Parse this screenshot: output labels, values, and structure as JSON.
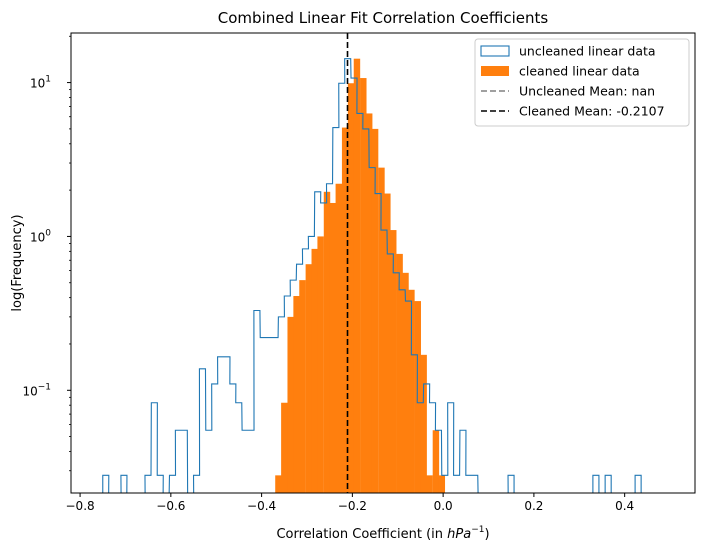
{
  "chart_data": {
    "type": "histogram",
    "title": "Combined Linear Fit Correlation Coefficients",
    "xlabel_prefix": "Correlation Coefficient (in ",
    "xlabel_unit_base": "hPa",
    "xlabel_unit_exp": "−1",
    "xlabel_suffix": ")",
    "ylabel": "log(Frequency)",
    "y_scale": "log",
    "xlim": [
      -0.82,
      0.555
    ],
    "ylim": [
      0.0215,
      21
    ],
    "grid": false,
    "legend_position": "upper right",
    "xticks": [
      {
        "value": -0.8,
        "label": "−0.8"
      },
      {
        "value": -0.6,
        "label": "−0.6"
      },
      {
        "value": -0.4,
        "label": "−0.4"
      },
      {
        "value": -0.2,
        "label": "−0.2"
      },
      {
        "value": 0.0,
        "label": "0.0"
      },
      {
        "value": 0.2,
        "label": "0.2"
      },
      {
        "value": 0.4,
        "label": "0.4"
      }
    ],
    "yticks": [
      {
        "value": 0.1,
        "base": "10",
        "exp": "−1"
      },
      {
        "value": 1,
        "base": "10",
        "exp": "0"
      },
      {
        "value": 10,
        "base": "10",
        "exp": "1"
      }
    ],
    "series": [
      {
        "name": "uncleaned linear data",
        "style": "step",
        "color": "#1f77b4",
        "bin_width": 0.0133,
        "bins": [
          [
            -0.75,
            0.028
          ],
          [
            -0.737,
            0.014
          ],
          [
            -0.723,
            0.014
          ],
          [
            -0.71,
            0.028
          ],
          [
            -0.697,
            0.014
          ],
          [
            -0.683,
            0.014
          ],
          [
            -0.67,
            0.014
          ],
          [
            -0.657,
            0.028
          ],
          [
            -0.643,
            0.083
          ],
          [
            -0.63,
            0.028
          ],
          [
            -0.617,
            0.014
          ],
          [
            -0.603,
            0.028
          ],
          [
            -0.59,
            0.055
          ],
          [
            -0.577,
            0.055
          ],
          [
            -0.563,
            0.014
          ],
          [
            -0.55,
            0.028
          ],
          [
            -0.537,
            0.138
          ],
          [
            -0.523,
            0.055
          ],
          [
            -0.51,
            0.11
          ],
          [
            -0.497,
            0.165
          ],
          [
            -0.483,
            0.165
          ],
          [
            -0.47,
            0.11
          ],
          [
            -0.457,
            0.083
          ],
          [
            -0.443,
            0.055
          ],
          [
            -0.43,
            0.055
          ],
          [
            -0.417,
            0.33
          ],
          [
            -0.403,
            0.22
          ],
          [
            -0.39,
            0.22
          ],
          [
            -0.377,
            0.22
          ],
          [
            -0.363,
            0.3
          ],
          [
            -0.35,
            0.41
          ],
          [
            -0.337,
            0.52
          ],
          [
            -0.323,
            0.66
          ],
          [
            -0.31,
            0.83
          ],
          [
            -0.297,
            1.0
          ],
          [
            -0.283,
            1.95
          ],
          [
            -0.27,
            1.65
          ],
          [
            -0.257,
            2.2
          ],
          [
            -0.243,
            5.1
          ],
          [
            -0.23,
            9.9
          ],
          [
            -0.217,
            14.3
          ],
          [
            -0.203,
            10.7
          ],
          [
            -0.19,
            6.3
          ],
          [
            -0.177,
            5.0
          ],
          [
            -0.163,
            2.8
          ],
          [
            -0.15,
            1.9
          ],
          [
            -0.137,
            1.1
          ],
          [
            -0.123,
            0.77
          ],
          [
            -0.11,
            0.58
          ],
          [
            -0.097,
            0.45
          ],
          [
            -0.083,
            0.38
          ],
          [
            -0.07,
            0.17
          ],
          [
            -0.057,
            0.083
          ],
          [
            -0.043,
            0.11
          ],
          [
            -0.03,
            0.083
          ],
          [
            -0.017,
            0.055
          ],
          [
            -0.003,
            0.028
          ],
          [
            0.01,
            0.083
          ],
          [
            0.023,
            0.028
          ],
          [
            0.037,
            0.055
          ],
          [
            0.05,
            0.028
          ],
          [
            0.063,
            0.028
          ],
          [
            0.077,
            0.014
          ],
          [
            0.09,
            0.014
          ],
          [
            0.103,
            0.014
          ],
          [
            0.117,
            0.014
          ],
          [
            0.13,
            0.014
          ],
          [
            0.143,
            0.028
          ],
          [
            0.33,
            0.028
          ],
          [
            0.357,
            0.028
          ],
          [
            0.423,
            0.028
          ]
        ]
      },
      {
        "name": "cleaned linear data",
        "style": "filled",
        "color": "#ff7f0e",
        "bin_width": 0.0133,
        "bins": [
          [
            -0.37,
            0.028
          ],
          [
            -0.357,
            0.083
          ],
          [
            -0.343,
            0.3
          ],
          [
            -0.33,
            0.41
          ],
          [
            -0.317,
            0.52
          ],
          [
            -0.303,
            0.66
          ],
          [
            -0.29,
            0.83
          ],
          [
            -0.277,
            1.0
          ],
          [
            -0.263,
            1.95
          ],
          [
            -0.25,
            1.65
          ],
          [
            -0.237,
            2.2
          ],
          [
            -0.223,
            5.1
          ],
          [
            -0.21,
            9.9
          ],
          [
            -0.197,
            14.3
          ],
          [
            -0.183,
            10.7
          ],
          [
            -0.17,
            6.3
          ],
          [
            -0.157,
            5.0
          ],
          [
            -0.143,
            2.8
          ],
          [
            -0.13,
            1.9
          ],
          [
            -0.117,
            1.1
          ],
          [
            -0.103,
            0.77
          ],
          [
            -0.09,
            0.58
          ],
          [
            -0.077,
            0.45
          ],
          [
            -0.063,
            0.38
          ],
          [
            -0.05,
            0.17
          ],
          [
            -0.037,
            0.028
          ],
          [
            -0.023,
            0.055
          ],
          [
            -0.01,
            0.028
          ]
        ]
      }
    ],
    "vlines": [
      {
        "name": "Uncleaned Mean: nan",
        "x": null,
        "color": "#808080",
        "dash": "6,3"
      },
      {
        "name": "Cleaned Mean: -0.2107",
        "x": -0.2107,
        "color": "#000000",
        "dash": "6,3"
      }
    ]
  }
}
